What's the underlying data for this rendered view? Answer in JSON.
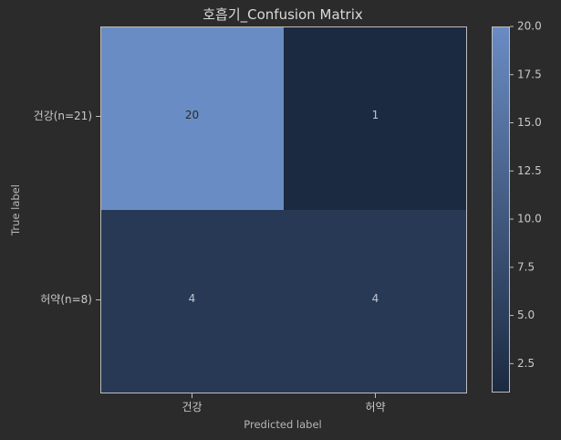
{
  "chart_data": {
    "type": "heatmap",
    "title": "호흡기_Confusion Matrix",
    "xlabel": "Predicted label",
    "ylabel": "True label",
    "x_categories": [
      "건강",
      "허약"
    ],
    "y_categories": [
      "건강(n=21)",
      "허약(n=8)"
    ],
    "values": [
      [
        20,
        1
      ],
      [
        4,
        4
      ]
    ],
    "colorbar": {
      "min": 1,
      "max": 20,
      "ticks": [
        "2.5",
        "5.0",
        "7.5",
        "10.0",
        "12.5",
        "15.0",
        "17.5",
        "20.0"
      ],
      "low_color": "#1b2a40",
      "high_color": "#6a8cc4"
    },
    "grid": false
  },
  "colors": {
    "background": "#2b2b2b",
    "frame": "#bdbdbd"
  }
}
